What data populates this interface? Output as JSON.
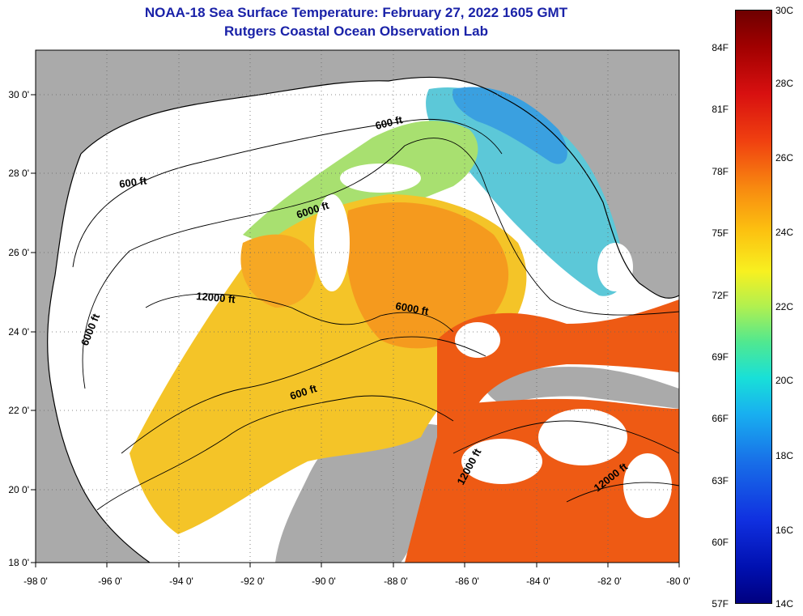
{
  "header": {
    "title": "NOAA-18 Sea Surface Temperature:  February 27, 2022 1605 GMT",
    "subtitle": "Rutgers Coastal Ocean Observation Lab"
  },
  "map": {
    "lon_ticks": [
      "-98 0'",
      "-96 0'",
      "-94 0'",
      "-92 0'",
      "-90 0'",
      "-88 0'",
      "-86 0'",
      "-84 0'",
      "-82 0'",
      "-80 0'"
    ],
    "lat_ticks": [
      "30 0'",
      "28 0'",
      "26 0'",
      "24 0'",
      "22 0'",
      "20 0'",
      "18 0'"
    ],
    "contour_labels": [
      "600 ft",
      "600 ft",
      "6000 ft",
      "12000 ft",
      "6000 ft",
      "6000 ft",
      "600 ft",
      "12000 ft",
      "12000 ft"
    ],
    "colors": {
      "land": "#aaaaaa",
      "cloud": "#ffffff",
      "gulf_warm": "#ee5a14",
      "gulf_mid": "#f8a020",
      "gulf_cool": "#e8e030",
      "shelf_cool": "#60d8a0",
      "nearshore_cold": "#3aa8e0"
    }
  },
  "colorbar": {
    "fahrenheit_labels": [
      "84F",
      "81F",
      "78F",
      "75F",
      "72F",
      "69F",
      "66F",
      "63F",
      "60F",
      "57F"
    ],
    "celsius_labels": [
      "30C",
      "28C",
      "26C",
      "24C",
      "22C",
      "20C",
      "18C",
      "16C",
      "14C"
    ]
  }
}
